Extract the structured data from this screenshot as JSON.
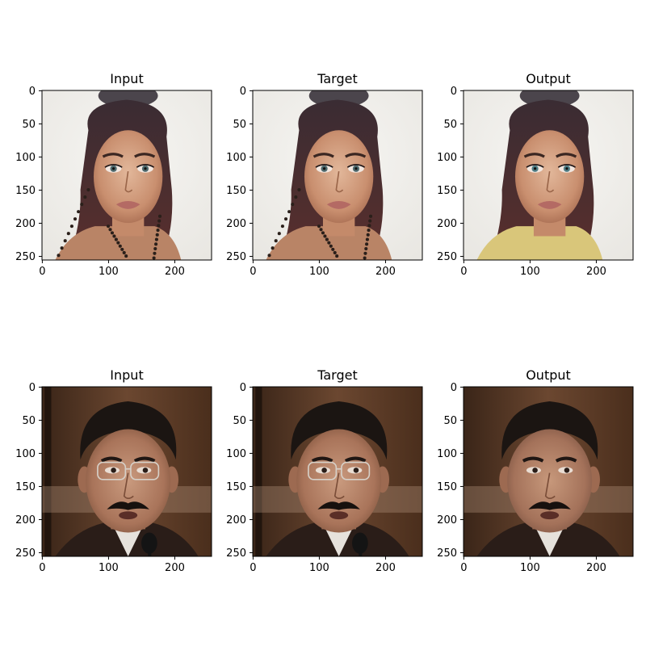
{
  "figure": {
    "rows": [
      {
        "panels": [
          {
            "title": "Input",
            "image": "portrait-woman-dark-hair-earrings-input"
          },
          {
            "title": "Target",
            "image": "portrait-woman-dark-hair-earrings-target"
          },
          {
            "title": "Output",
            "image": "portrait-woman-dark-hair-yellow-top-output"
          }
        ]
      },
      {
        "panels": [
          {
            "title": "Input",
            "image": "portrait-man-glasses-mustache-microphone-input"
          },
          {
            "title": "Target",
            "image": "portrait-man-glasses-mustache-microphone-target"
          },
          {
            "title": "Output",
            "image": "portrait-man-mustache-output"
          }
        ]
      }
    ],
    "x_ticks": [
      "0",
      "100",
      "200"
    ],
    "y_ticks": [
      "0",
      "50",
      "100",
      "150",
      "200",
      "250"
    ],
    "image_size": 256
  }
}
